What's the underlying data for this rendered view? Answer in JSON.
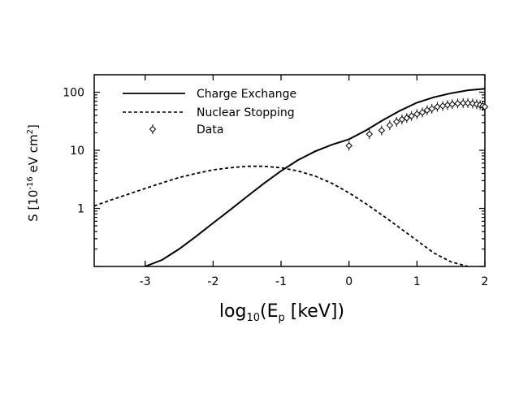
{
  "chart_data": {
    "type": "line",
    "title": "",
    "xlabel": {
      "main": "log",
      "sub": "10",
      "paren_open": "(E",
      "sub2": "p",
      "tail": " [keV])"
    },
    "ylabel": {
      "pre": "S [10",
      "exp": "-16",
      "mid": " eV cm",
      "exp2": "2",
      "post": "]"
    },
    "x_scale": "linear",
    "y_scale": "log",
    "xlim": [
      -3.75,
      2.0
    ],
    "ylim": [
      0.1,
      200
    ],
    "x_ticks": [
      -3,
      -2,
      -1,
      0,
      1,
      2
    ],
    "x_tick_labels": [
      "-3",
      "-2",
      "-1",
      "0",
      "1",
      "2"
    ],
    "y_ticks": [
      1,
      10,
      100
    ],
    "y_tick_labels": [
      "1",
      "10",
      "100"
    ],
    "grid": false,
    "legend_position": "top-left",
    "series": [
      {
        "name": "Charge Exchange",
        "style": "solid",
        "x": [
          -3.0,
          -2.75,
          -2.5,
          -2.25,
          -2.0,
          -1.75,
          -1.5,
          -1.25,
          -1.0,
          -0.75,
          -0.5,
          -0.25,
          0.0,
          0.25,
          0.5,
          0.75,
          1.0,
          1.25,
          1.5,
          1.75,
          2.0
        ],
        "y": [
          0.1,
          0.13,
          0.2,
          0.33,
          0.56,
          0.94,
          1.6,
          2.7,
          4.4,
          6.8,
          9.6,
          12.5,
          15.5,
          22,
          33,
          48,
          66,
          82,
          96,
          108,
          115
        ]
      },
      {
        "name": "Nuclear Stopping",
        "style": "dashed",
        "x": [
          -3.75,
          -3.5,
          -3.25,
          -3.0,
          -2.75,
          -2.5,
          -2.25,
          -2.0,
          -1.75,
          -1.5,
          -1.25,
          -1.0,
          -0.75,
          -0.5,
          -0.25,
          0.0,
          0.25,
          0.5,
          0.75,
          1.0,
          1.25,
          1.5,
          1.75
        ],
        "y": [
          1.1,
          1.4,
          1.75,
          2.2,
          2.75,
          3.4,
          4.0,
          4.6,
          5.0,
          5.3,
          5.3,
          5.0,
          4.4,
          3.6,
          2.7,
          1.85,
          1.2,
          0.75,
          0.46,
          0.28,
          0.17,
          0.12,
          0.1
        ]
      },
      {
        "name": "Data",
        "style": "markers",
        "marker": "diamond-errorbar",
        "x": [
          0.0,
          0.3,
          0.48,
          0.6,
          0.7,
          0.78,
          0.85,
          0.92,
          1.0,
          1.08,
          1.15,
          1.22,
          1.3,
          1.38,
          1.45,
          1.52,
          1.6,
          1.68,
          1.75,
          1.82,
          1.88,
          1.93,
          1.97,
          2.0
        ],
        "y": [
          12,
          19,
          22,
          27,
          31,
          34,
          36,
          39,
          42,
          45,
          49,
          52,
          56,
          58,
          60,
          62,
          64,
          65,
          65,
          64,
          62,
          60,
          58,
          56
        ]
      }
    ]
  }
}
